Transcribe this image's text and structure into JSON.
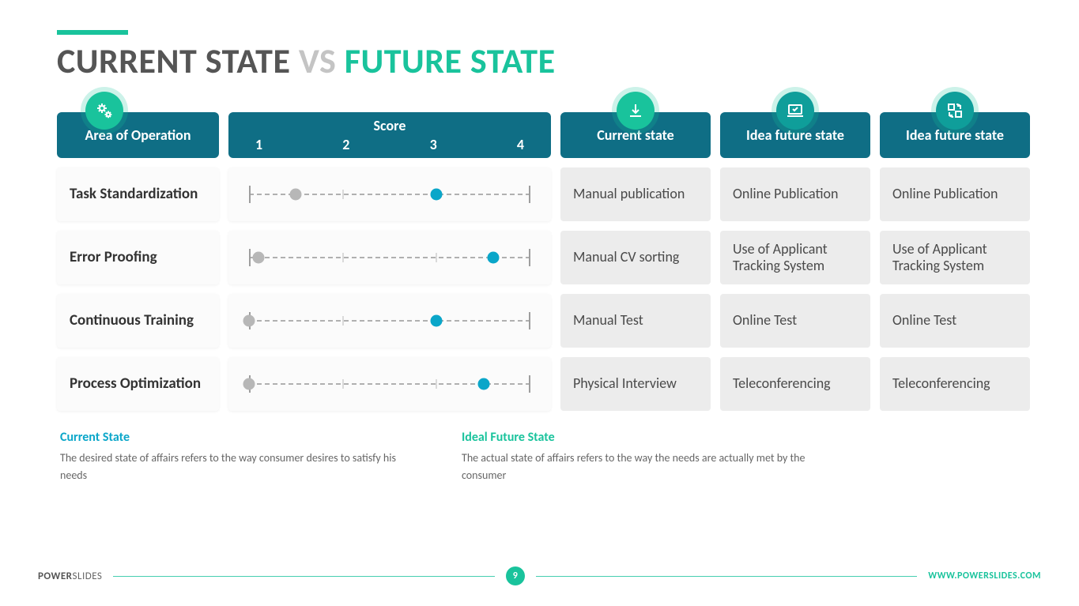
{
  "title": {
    "part1": "CURRENT STATE ",
    "part2": "VS ",
    "part3": "FUTURE STATE"
  },
  "colors": {
    "accent_teal": "#19c39c",
    "header_teal": "#0f6e85",
    "cyan": "#0aa6c9",
    "grey_dot": "#b7b7b7",
    "cell_grey": "#ececec"
  },
  "headers": {
    "area": "Area of Operation",
    "score_label": "Score",
    "score_ticks": [
      "1",
      "2",
      "3",
      "4"
    ],
    "current": "Current state",
    "future1": "Idea future state",
    "future2": "Idea future state",
    "icons": {
      "area": {
        "name": "gears-icon",
        "bg": "#19c39c"
      },
      "current": {
        "name": "download-icon",
        "bg": "#19c39c"
      },
      "future1": {
        "name": "laptop-check-icon",
        "bg": "#0f9e9a"
      },
      "future2": {
        "name": "refresh-squares-icon",
        "bg": "#0f9e9a"
      }
    }
  },
  "score_scale": {
    "min": 1,
    "max": 4,
    "tick_positions_pct": [
      0,
      33.33,
      66.67,
      100
    ]
  },
  "rows": [
    {
      "area": "Task Standardization",
      "grey_value": 1.5,
      "cyan_value": 3.0,
      "current": "Manual publication",
      "future1": "Online Publication",
      "future2": "Online Publication"
    },
    {
      "area": "Error Proofing",
      "grey_value": 1.1,
      "cyan_value": 3.6,
      "current": "Manual CV sorting",
      "future1": "Use of Applicant Tracking System",
      "future2": "Use of Applicant Tracking System"
    },
    {
      "area": "Continuous Training",
      "grey_value": 1.0,
      "cyan_value": 3.0,
      "current": "Manual Test",
      "future1": "Online Test",
      "future2": "Online Test"
    },
    {
      "area": "Process Optimization",
      "grey_value": 1.0,
      "cyan_value": 3.5,
      "current": "Physical Interview",
      "future1": "Teleconferencing",
      "future2": "Teleconferencing"
    }
  ],
  "legend": {
    "current": {
      "title": "Current State",
      "text": "The desired state of affairs refers to the way consumer desires to satisfy his needs"
    },
    "future": {
      "title": "Ideal Future  State",
      "text": "The actual state of affairs refers to the way the needs are actually met by the consumer"
    }
  },
  "footer": {
    "brand_bold": "POWER",
    "brand_rest": "SLIDES",
    "page": "9",
    "url": "WWW.POWERSLIDES.COM"
  }
}
